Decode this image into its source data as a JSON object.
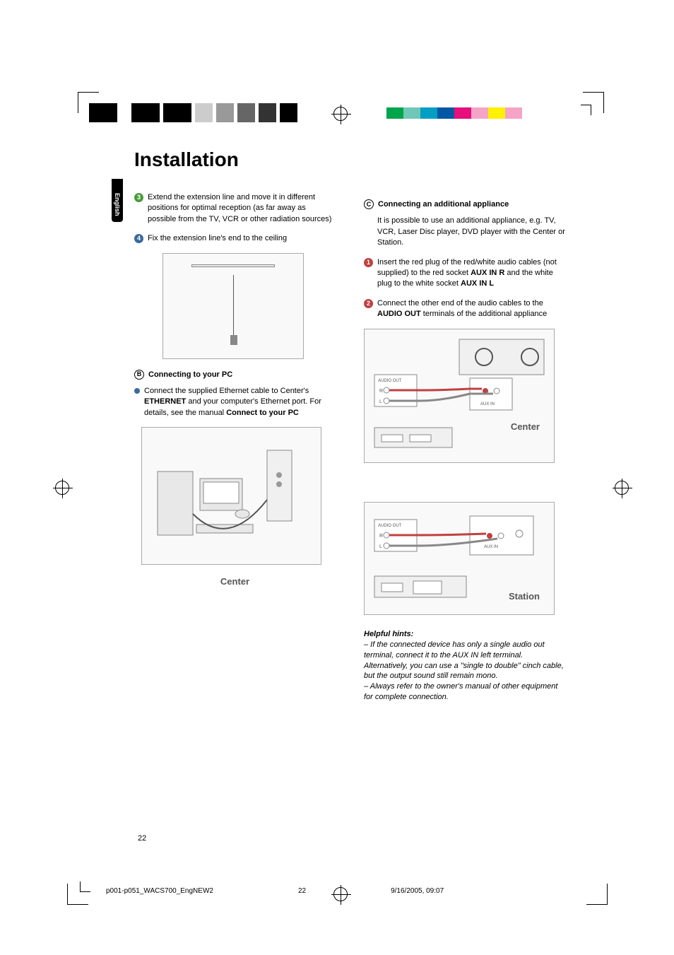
{
  "title": "Installation",
  "lang_tab": "English",
  "page_number": "22",
  "footer": {
    "file": "p001-p051_WACS700_EngNEW2",
    "page": "22",
    "timestamp": "9/16/2005, 09:07"
  },
  "color_bar_right": [
    "#00a44a",
    "#6fc7b8",
    "#009fc3",
    "#0057a4",
    "#e60f7b",
    "#f5a4c7",
    "#fff100",
    "#f5a4c7"
  ],
  "left_col": {
    "step3": "Extend the extension line and move it in different positions for optimal reception (as far away as possible from the TV, VCR or other radiation sources)",
    "step4": "Fix the extension line's end to the ceiling",
    "section_b_title": "Connecting to your PC",
    "section_b_text_pre": "Connect the supplied Ethernet cable to Center's ",
    "section_b_bold1": "ETHERNET",
    "section_b_text_mid": " and your computer's Ethernet port. For details, see the manual ",
    "section_b_bold2": "Connect to your PC",
    "caption_center": "Center"
  },
  "right_col": {
    "section_c_title": "Connecting an additional appliance",
    "section_c_intro": "It is possible to use an additional appliance, e.g. TV, VCR, Laser Disc player, DVD player with the Center or Station.",
    "step1_pre": "Insert the red plug of the red/white audio cables (not supplied) to the red socket ",
    "step1_bold1": "AUX IN R",
    "step1_mid": " and the white plug to the white socket ",
    "step1_bold2": "AUX IN L",
    "step2_pre": "Connect the other end of the audio cables to the ",
    "step2_bold": "AUDIO OUT",
    "step2_post": " terminals of the additional appliance",
    "caption_center2": "Center",
    "caption_station": "Station",
    "hints_title": "Helpful hints:",
    "hint1": "– If the connected device has only a single audio out terminal, connect it to the AUX IN left terminal. Alternatively, you can use a \"single to double\" cinch cable, but the output sound still remain mono.",
    "hint2": "– Always refer to the owner's manual of other equipment for complete connection."
  }
}
